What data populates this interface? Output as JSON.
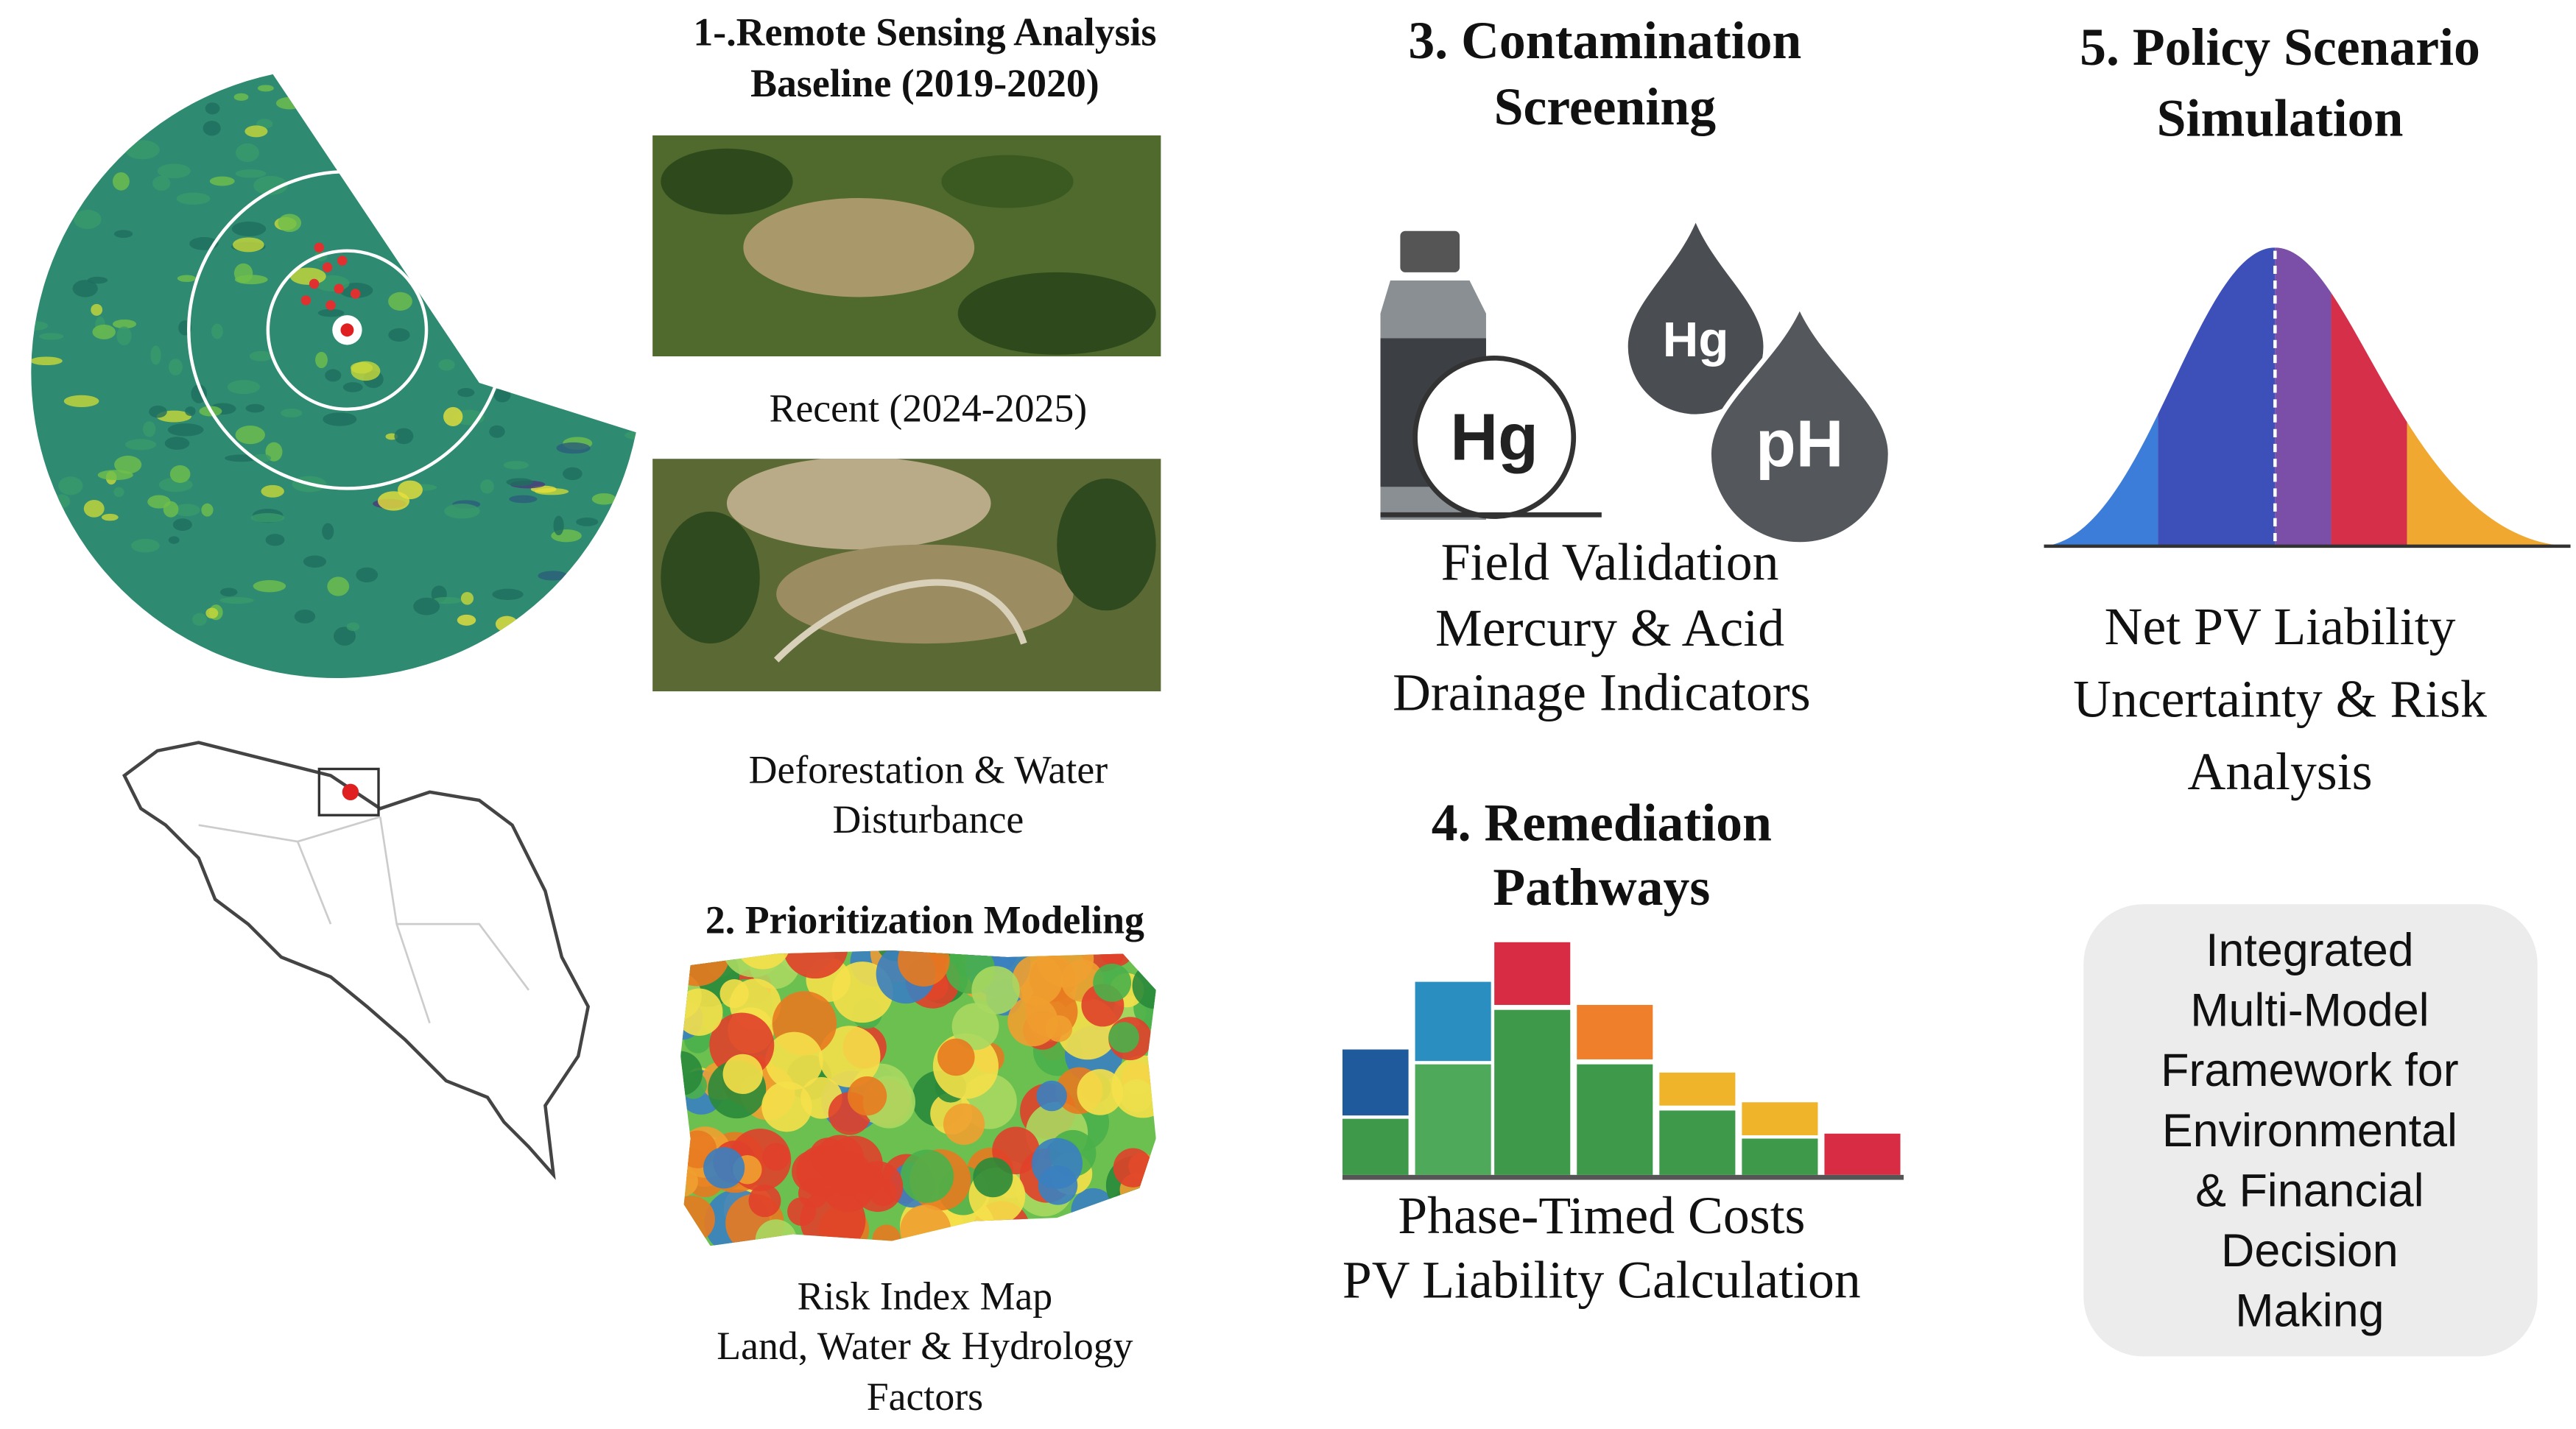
{
  "remote_sensing": {
    "title": [
      "1-.Remote Sensing Analysis",
      "Baseline (2019-2020)"
    ],
    "recent_label": "Recent (2024-2025)",
    "caption": [
      "Deforestation & Water",
      "Disturbance"
    ]
  },
  "prioritization": {
    "title": "2. Prioritization Modeling",
    "caption": [
      "Risk Index Map",
      "Land, Water & Hydrology",
      "Factors"
    ]
  },
  "contamination": {
    "title": [
      "3. Contamination",
      "Screening"
    ],
    "icon_labels": [
      "Hg",
      "Hg",
      "pH"
    ],
    "caption": [
      "Field Validation",
      "Mercury & Acid",
      "Drainage Indicators"
    ]
  },
  "remediation": {
    "title": [
      "4. Remediation",
      "Pathways"
    ],
    "caption": [
      "Phase-Timed Costs",
      "PV Liability Calculation"
    ]
  },
  "policy": {
    "title": [
      "5. Policy Scenario",
      "Simulation"
    ],
    "caption": [
      "Net PV Liability",
      "Uncertainty & Risk",
      "Analysis"
    ]
  },
  "framework_box": {
    "lines": [
      "Integrated",
      "Multi-Model",
      "Framework for",
      "Environmental",
      "& Financial",
      "Decision",
      "Making"
    ]
  }
}
